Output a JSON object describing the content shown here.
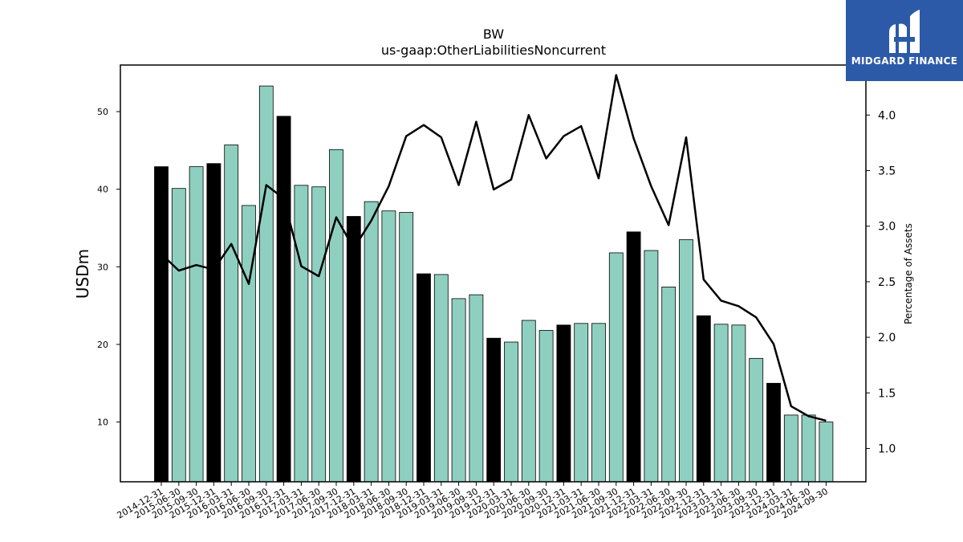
{
  "chart_data": {
    "type": "bar",
    "title": "BW",
    "subtitle": "us-gaap:OtherLiabilitiesNoncurrent",
    "ylabel": "USDm",
    "y2label": "Percentage of Assets",
    "ylim": [
      2.3,
      56.0
    ],
    "y2lim": [
      0.7,
      4.45
    ],
    "yticks": [
      10,
      20,
      30,
      40,
      50
    ],
    "y2ticks": [
      1.0,
      1.5,
      2.0,
      2.5,
      3.0,
      3.5,
      4.0
    ],
    "categories": [
      "2014-12-31",
      "2015-06-30",
      "2015-09-30",
      "2015-12-31",
      "2016-03-31",
      "2016-06-30",
      "2016-09-30",
      "2016-12-31",
      "2017-03-31",
      "2017-06-30",
      "2017-09-30",
      "2017-12-31",
      "2018-03-31",
      "2018-06-30",
      "2018-09-30",
      "2018-12-31",
      "2019-03-31",
      "2019-06-30",
      "2019-09-30",
      "2019-12-31",
      "2020-03-31",
      "2020-06-30",
      "2020-09-30",
      "2020-12-31",
      "2021-03-31",
      "2021-06-30",
      "2021-09-30",
      "2021-12-31",
      "2022-03-31",
      "2022-06-30",
      "2022-09-30",
      "2022-12-31",
      "2023-03-31",
      "2023-06-30",
      "2023-09-30",
      "2023-12-31",
      "2024-03-31",
      "2024-06-30",
      "2024-09-30"
    ],
    "series": [
      {
        "kind": "bar",
        "values": [
          42.9,
          40.1,
          42.9,
          43.3,
          45.7,
          37.9,
          53.3,
          49.4,
          40.5,
          40.3,
          45.1,
          36.5,
          38.4,
          37.2,
          37.0,
          29.1,
          29.0,
          25.9,
          26.4,
          20.8,
          20.3,
          23.1,
          21.8,
          22.5,
          22.7,
          22.7,
          31.8,
          34.5,
          32.1,
          27.4,
          33.5,
          23.7,
          22.6,
          22.5,
          18.2,
          15.0,
          10.9,
          10.9,
          10.0
        ],
        "colors": {
          "year_end": "#000000",
          "quarter": "#8ecfc0"
        }
      },
      {
        "kind": "line",
        "axis": "right",
        "values": [
          2.75,
          2.6,
          2.65,
          2.61,
          2.84,
          2.48,
          3.37,
          3.25,
          2.64,
          2.55,
          3.08,
          2.8,
          3.05,
          3.36,
          3.81,
          3.91,
          3.8,
          3.37,
          3.94,
          3.33,
          3.42,
          4.0,
          3.61,
          3.81,
          3.9,
          3.43,
          4.36,
          3.79,
          3.36,
          3.01,
          3.8,
          2.52,
          2.33,
          2.28,
          2.18,
          1.94,
          1.38,
          1.29,
          1.25
        ],
        "color": "#000000"
      }
    ],
    "grid": false,
    "legend": "none"
  },
  "brand": {
    "name": "MIDGARD FINANCE",
    "bg_color": "#2c5aa8"
  }
}
